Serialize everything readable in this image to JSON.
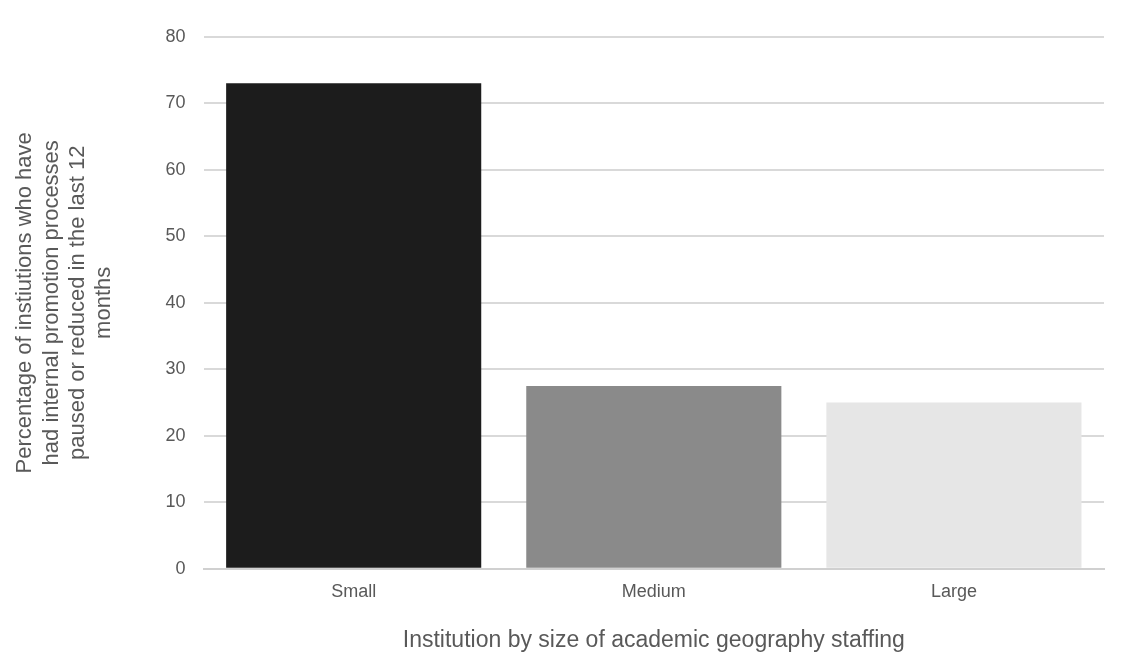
{
  "chart_data": {
    "type": "bar",
    "xlabel": "Institution by size of academic geography staffing",
    "ylabel": "Percentage of instiutions who have had internal promotion processes paused or reduced in the last 12 months",
    "categories": [
      "Small",
      "Medium",
      "Large"
    ],
    "values": [
      73,
      27.5,
      25
    ],
    "colors": [
      "#1c1c1c",
      "#8a8a8a",
      "#e6e6e6"
    ],
    "ylim": [
      0,
      80
    ],
    "yticks": [
      0,
      10,
      20,
      30,
      40,
      50,
      60,
      70,
      80
    ],
    "grid": "y",
    "legend": false
  }
}
